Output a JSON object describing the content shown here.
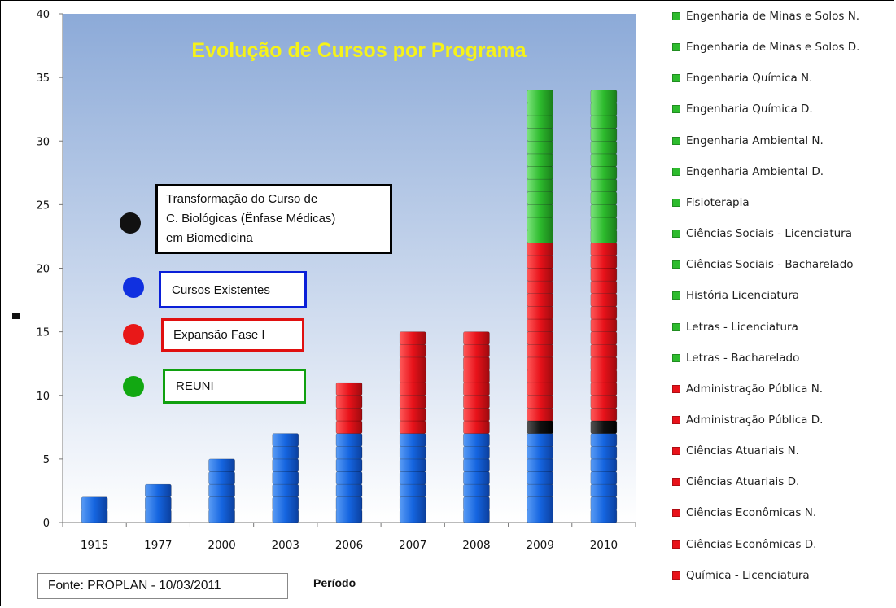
{
  "chart_data": {
    "type": "bar",
    "stacked": true,
    "title": "Evolução de Cursos por Programa",
    "xlabel": "Período",
    "ylabel": "",
    "ylim": [
      0,
      40
    ],
    "yticks": [
      0,
      5,
      10,
      15,
      20,
      25,
      30,
      35,
      40
    ],
    "grid": false,
    "legend_position": "right",
    "categories": [
      "1915",
      "1977",
      "2000",
      "2003",
      "2006",
      "2007",
      "2008",
      "2009",
      "2010"
    ],
    "series": [
      {
        "name": "Cursos Existentes",
        "color": "#1565e0",
        "values": [
          2,
          3,
          5,
          7,
          7,
          7,
          7,
          7,
          7
        ]
      },
      {
        "name": "Transformação do Curso de C. Biológicas (Ênfase Médicas) em Biomedicina",
        "color": "#111111",
        "values": [
          0,
          0,
          0,
          0,
          0,
          0,
          0,
          1,
          1
        ]
      },
      {
        "name": "Expansão Fase I",
        "color": "#e8121a",
        "values": [
          0,
          0,
          0,
          0,
          4,
          8,
          8,
          14,
          14
        ]
      },
      {
        "name": "REUNI",
        "color": "#2dbb2d",
        "values": [
          0,
          0,
          0,
          0,
          0,
          0,
          0,
          12,
          12
        ]
      }
    ]
  },
  "key_boxes": [
    {
      "id": "transform",
      "lines": [
        "Transformação do Curso de",
        "C. Biológicas (Ênfase Médicas)",
        "em Biomedicina"
      ],
      "border": "#000000",
      "dot": "#111111"
    },
    {
      "id": "existentes",
      "lines": [
        "Cursos Existentes"
      ],
      "border": "#0a1fd8",
      "dot": "#1030e0"
    },
    {
      "id": "expansao",
      "lines": [
        "Expansão Fase I"
      ],
      "border": "#e01010",
      "dot": "#e81818"
    },
    {
      "id": "reuni",
      "lines": [
        "REUNI"
      ],
      "border": "#10a010",
      "dot": "#12a812"
    }
  ],
  "legend": [
    {
      "label": "Engenharia de Minas e Solos N.",
      "color": "#2dbb2d"
    },
    {
      "label": "Engenharia de Minas e Solos D.",
      "color": "#2dbb2d"
    },
    {
      "label": "Engenharia Química N.",
      "color": "#2dbb2d"
    },
    {
      "label": "Engenharia Química D.",
      "color": "#2dbb2d"
    },
    {
      "label": "Engenharia Ambiental N.",
      "color": "#2dbb2d"
    },
    {
      "label": "Engenharia Ambiental D.",
      "color": "#2dbb2d"
    },
    {
      "label": "Fisioterapia",
      "color": "#2dbb2d"
    },
    {
      "label": "Ciências Sociais - Licenciatura",
      "color": "#2dbb2d"
    },
    {
      "label": "Ciências Sociais - Bacharelado",
      "color": "#2dbb2d"
    },
    {
      "label": "História Licenciatura",
      "color": "#2dbb2d"
    },
    {
      "label": "Letras - Licenciatura",
      "color": "#2dbb2d"
    },
    {
      "label": "Letras - Bacharelado",
      "color": "#2dbb2d"
    },
    {
      "label": "Administração Pública N.",
      "color": "#e8121a"
    },
    {
      "label": "Administração Pública D.",
      "color": "#e8121a"
    },
    {
      "label": "Ciências Atuariais N.",
      "color": "#e8121a"
    },
    {
      "label": "Ciências Atuariais D.",
      "color": "#e8121a"
    },
    {
      "label": "Ciências Econômicas N.",
      "color": "#e8121a"
    },
    {
      "label": "Ciências Econômicas D.",
      "color": "#e8121a"
    },
    {
      "label": "Química - Licenciatura",
      "color": "#e8121a"
    }
  ],
  "source": "Fonte: PROPLAN - 10/03/2011",
  "colors": {
    "title": "#f5f21a",
    "plot_top": "#8eacd8",
    "plot_bottom": "#ffffff"
  }
}
